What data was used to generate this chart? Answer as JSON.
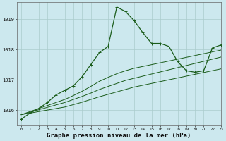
{
  "title": "Graphe pression niveau de la mer (hPa)",
  "bg_color": "#cce8ee",
  "grid_color": "#aacccc",
  "line_color": "#1a5c1a",
  "hours": [
    0,
    1,
    2,
    3,
    4,
    5,
    6,
    7,
    8,
    9,
    10,
    11,
    12,
    13,
    14,
    15,
    16,
    17,
    18,
    19,
    20,
    21,
    22,
    23
  ],
  "pressure_main": [
    1015.7,
    1015.9,
    1016.05,
    1016.25,
    1016.5,
    1016.65,
    1016.8,
    1017.1,
    1017.5,
    1017.9,
    1018.1,
    1019.4,
    1019.25,
    1018.95,
    1018.55,
    1018.2,
    1018.2,
    1018.1,
    1017.6,
    1017.3,
    1017.25,
    1017.3,
    1018.05,
    1018.15
  ],
  "pressure_ref1": [
    1015.85,
    1015.9,
    1015.95,
    1016.0,
    1016.05,
    1016.1,
    1016.18,
    1016.26,
    1016.35,
    1016.44,
    1016.52,
    1016.6,
    1016.68,
    1016.76,
    1016.82,
    1016.88,
    1016.94,
    1017.0,
    1017.06,
    1017.12,
    1017.18,
    1017.24,
    1017.3,
    1017.36
  ],
  "pressure_ref2": [
    1015.85,
    1015.93,
    1016.01,
    1016.09,
    1016.17,
    1016.25,
    1016.35,
    1016.45,
    1016.56,
    1016.68,
    1016.78,
    1016.88,
    1016.98,
    1017.05,
    1017.12,
    1017.19,
    1017.26,
    1017.33,
    1017.4,
    1017.47,
    1017.54,
    1017.61,
    1017.68,
    1017.75
  ],
  "pressure_ref3": [
    1015.85,
    1015.95,
    1016.05,
    1016.15,
    1016.25,
    1016.35,
    1016.48,
    1016.62,
    1016.78,
    1016.95,
    1017.08,
    1017.2,
    1017.3,
    1017.38,
    1017.44,
    1017.5,
    1017.56,
    1017.62,
    1017.68,
    1017.74,
    1017.8,
    1017.86,
    1017.92,
    1017.98
  ],
  "ylim_min": 1015.5,
  "ylim_max": 1019.55,
  "yticks": [
    1016,
    1017,
    1018,
    1019
  ],
  "title_fontsize": 6.5
}
